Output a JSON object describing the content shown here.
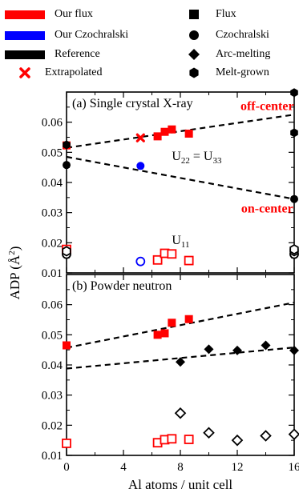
{
  "legend": {
    "colors": [
      {
        "label": "Our flux",
        "color": "#ff0000"
      },
      {
        "label": "Our Czochralski",
        "color": "#0000ff"
      },
      {
        "label": "Reference",
        "color": "#000000"
      }
    ],
    "extrapolated": {
      "label": "Extrapolated",
      "color": "#ff0000"
    },
    "shapes": [
      {
        "label": "Flux",
        "icon": "square-icon"
      },
      {
        "label": "Czochralski",
        "icon": "circle-icon"
      },
      {
        "label": "Arc-melting",
        "icon": "diamond-icon"
      },
      {
        "label": "Melt-grown",
        "icon": "hexagon-icon"
      }
    ]
  },
  "chart_data": [
    {
      "type": "scatter",
      "title": "(a) Single crystal X-ray",
      "xlim": [
        0,
        16
      ],
      "ylim": [
        0.01,
        0.07
      ],
      "xticks": [
        0,
        4,
        8,
        12,
        16
      ],
      "yticks": [
        0.01,
        0.02,
        0.03,
        0.04,
        0.05,
        0.06
      ],
      "annotations": [
        {
          "text": "off-center",
          "color": "#ff0000",
          "x": 14.1,
          "y": 0.064
        },
        {
          "text": "on-center",
          "color": "#ff0000",
          "x": 14.1,
          "y": 0.03
        },
        {
          "text": "U",
          "sub": "22",
          "text2": " = U",
          "sub2": "33",
          "color": "#000000",
          "x": 7.4,
          "y": 0.0475
        },
        {
          "text": "U",
          "sub": "11",
          "color": "#000000",
          "x": 7.4,
          "y": 0.0195
        }
      ],
      "fit_lines": [
        {
          "x": [
            0,
            16
          ],
          "y": [
            0.0515,
            0.0625
          ]
        },
        {
          "x": [
            0,
            16
          ],
          "y": [
            0.0485,
            0.0345
          ]
        }
      ],
      "series": [
        {
          "marker": "square",
          "filled": true,
          "color": "#ff0000",
          "x": [
            0,
            6.4,
            6.9,
            7.4,
            8.6
          ],
          "y": [
            0.0523,
            0.0553,
            0.0568,
            0.0576,
            0.0562
          ]
        },
        {
          "marker": "cross",
          "filled": true,
          "color": "#ff0000",
          "x": [
            5.2
          ],
          "y": [
            0.0548
          ]
        },
        {
          "marker": "circle",
          "filled": true,
          "color": "#0000ff",
          "x": [
            5.2
          ],
          "y": [
            0.0455
          ]
        },
        {
          "marker": "circle",
          "filled": true,
          "color": "#000000",
          "x": [
            0,
            16
          ],
          "y": [
            0.0458,
            0.0345
          ]
        },
        {
          "marker": "hexagon",
          "filled": true,
          "color": "#000000",
          "x": [
            0,
            16,
            16
          ],
          "y": [
            0.0525,
            0.0565,
            0.0698
          ]
        },
        {
          "marker": "square",
          "filled": false,
          "color": "#ff0000",
          "x": [
            0,
            6.4,
            6.9,
            7.4,
            8.6
          ],
          "y": [
            0.0178,
            0.0143,
            0.0165,
            0.0163,
            0.0141
          ]
        },
        {
          "marker": "circle",
          "filled": false,
          "color": "#0000ff",
          "x": [
            5.2
          ],
          "y": [
            0.0138
          ]
        },
        {
          "marker": "circle",
          "filled": false,
          "color": "#000000",
          "x": [
            0,
            16
          ],
          "y": [
            0.0162,
            0.0162
          ]
        },
        {
          "marker": "hexagon",
          "filled": false,
          "color": "#000000",
          "x": [
            0,
            16,
            16
          ],
          "y": [
            0.0172,
            0.0172,
            0.0178
          ]
        }
      ]
    },
    {
      "type": "scatter",
      "title": "(b) Powder neutron",
      "xlabel": "Al atoms / unit cell",
      "xlim": [
        0,
        16
      ],
      "ylim": [
        0.01,
        0.07
      ],
      "xticks": [
        0,
        4,
        8,
        12,
        16
      ],
      "yticks": [
        0.01,
        0.02,
        0.03,
        0.04,
        0.05,
        0.06
      ],
      "fit_lines": [
        {
          "x": [
            0,
            16
          ],
          "y": [
            0.0457,
            0.0607
          ]
        },
        {
          "x": [
            0,
            16
          ],
          "y": [
            0.0388,
            0.0458
          ]
        }
      ],
      "series": [
        {
          "marker": "square",
          "filled": true,
          "color": "#ff0000",
          "x": [
            0,
            6.4,
            6.9,
            7.4,
            8.6
          ],
          "y": [
            0.0465,
            0.05,
            0.0505,
            0.054,
            0.0552
          ]
        },
        {
          "marker": "diamond",
          "filled": true,
          "color": "#000000",
          "x": [
            8,
            10,
            12,
            14,
            16
          ],
          "y": [
            0.041,
            0.0452,
            0.0448,
            0.0465,
            0.0448
          ]
        },
        {
          "marker": "square",
          "filled": false,
          "color": "#ff0000",
          "x": [
            0,
            6.4,
            6.9,
            7.4,
            8.6
          ],
          "y": [
            0.014,
            0.0142,
            0.0152,
            0.0155,
            0.0153
          ]
        },
        {
          "marker": "diamond",
          "filled": false,
          "color": "#000000",
          "x": [
            8,
            10,
            12,
            14,
            16
          ],
          "y": [
            0.024,
            0.0175,
            0.015,
            0.0165,
            0.017
          ]
        }
      ]
    }
  ],
  "ylabel": "ADP (Å²)"
}
